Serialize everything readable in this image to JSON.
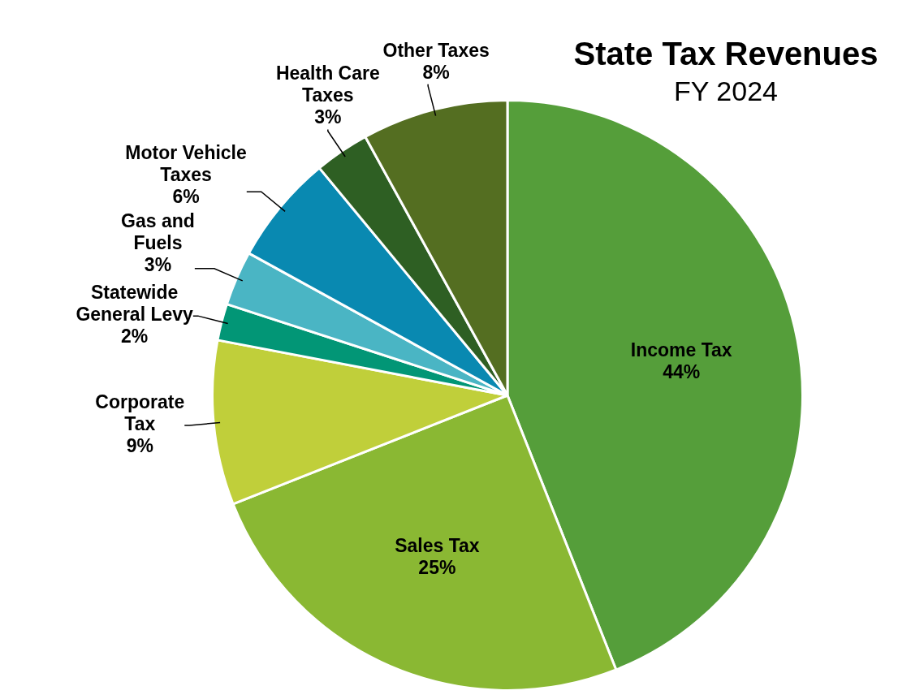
{
  "chart_data": {
    "type": "pie",
    "title": "State Tax Revenues",
    "subtitle": "FY 2024",
    "categories": [
      "Income Tax",
      "Sales Tax",
      "Corporate Tax",
      "Statewide General Levy",
      "Gas and Fuels",
      "Motor Vehicle Taxes",
      "Health Care Taxes",
      "Other Taxes"
    ],
    "values": [
      44,
      25,
      9,
      2,
      3,
      6,
      3,
      8
    ],
    "value_labels": [
      "44%",
      "25%",
      "9%",
      "2%",
      "3%",
      "6%",
      "3%",
      "8%"
    ],
    "colors": [
      "#559e3a",
      "#8ab833",
      "#c0cf3a",
      "#029676",
      "#4ab5c4",
      "#0989b1",
      "#2e5f23",
      "#546e21"
    ],
    "legend": false
  }
}
